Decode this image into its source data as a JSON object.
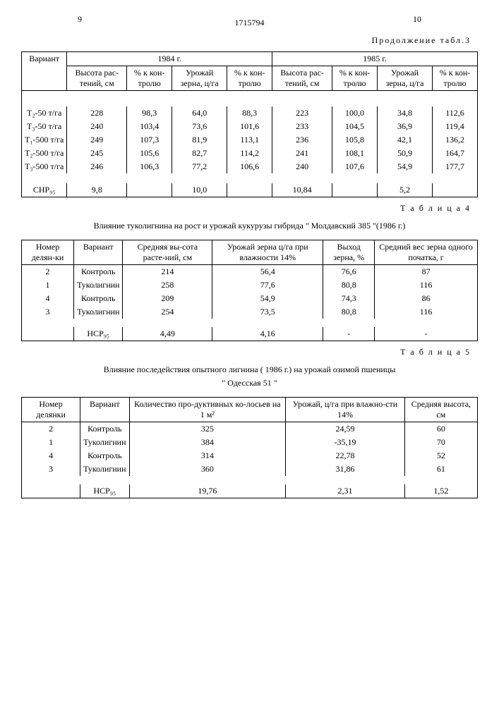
{
  "page_left": "9",
  "doc_number": "1715794",
  "page_right": "10",
  "cont_caption": "Продолжение табл.3",
  "t3": {
    "variant_hdr": "Вариант",
    "year1": "1984 г.",
    "year2": "1985 г.",
    "h_height": "Высота рас-тений, см",
    "h_pct": "% к кон-тролю",
    "h_yield": "Урожай зерна, ц/га",
    "rows": [
      {
        "v": "Т₂-50 т/га",
        "a": "228",
        "b": "98,3",
        "c": "64,0",
        "d": "88,3",
        "e": "223",
        "f": "100,0",
        "g": "34,8",
        "h": "112,6"
      },
      {
        "v": "Т₃-50 т/га",
        "a": "240",
        "b": "103,4",
        "c": "73,6",
        "d": "101,6",
        "e": "233",
        "f": "104,5",
        "g": "36,9",
        "h": "119,4"
      },
      {
        "v": "Т₁-500 т/га",
        "a": "249",
        "b": "107,3",
        "c": "81,9",
        "d": "113,1",
        "e": "236",
        "f": "105,8",
        "g": "42,1",
        "h": "136,2"
      },
      {
        "v": "Т₂-500 т/га",
        "a": "245",
        "b": "105,6",
        "c": "82,7",
        "d": "114,2",
        "e": "241",
        "f": "108,1",
        "g": "50,9",
        "h": "164,7"
      },
      {
        "v": "Т₃-500 т/га",
        "a": "246",
        "b": "106,3",
        "c": "77,2",
        "d": "106,6",
        "e": "240",
        "f": "107,6",
        "g": "54,9",
        "h": "177,7"
      }
    ],
    "snr_label": "СНР₉₅",
    "snr": {
      "a": "9,8",
      "c": "10,0",
      "e": "10,84",
      "g": "5,2"
    }
  },
  "t4_caption": "Т а б л и ц а 4",
  "t4_title": "Влияние туколигнина на рост и урожай кукурузы гибрида \" Молдавский 385 \"(1986 г.)",
  "t4": {
    "h1": "Номер делян-ки",
    "h2": "Вариант",
    "h3": "Средняя вы-сота расте-ний, см",
    "h4": "Урожай зерна ц/га при влажности 14%",
    "h5": "Выход зерна, %",
    "h6": "Средний вес зерна одного початка, г",
    "rows": [
      {
        "a": "2",
        "b": "Контроль",
        "c": "214",
        "d": "56,4",
        "e": "76,6",
        "f": "87"
      },
      {
        "a": "1",
        "b": "Туколигнин",
        "c": "258",
        "d": "77,6",
        "e": "80,8",
        "f": "116"
      },
      {
        "a": "4",
        "b": "Контроль",
        "c": "209",
        "d": "54,9",
        "e": "74,3",
        "f": "86"
      },
      {
        "a": "3",
        "b": "Туколигнин",
        "c": "254",
        "d": "73,5",
        "e": "80,8",
        "f": "116"
      }
    ],
    "hcp_label": "НСР₉₅",
    "hcp": {
      "c": "4,49",
      "d": "4,16",
      "e": "-",
      "f": "-"
    }
  },
  "t5_caption": "Т а б л и ц а 5",
  "t5_title1": "Влияние последействия опытного лигнина ( 1986 г.) на урожай озимой пшеницы",
  "t5_title2": "\" Одесская 51 \"",
  "t5": {
    "h1": "Номер делянки",
    "h2": "Вариант",
    "h3": "Количество про-дуктивных ко-лосьев на 1 м²",
    "h4": "Урожай, ц/га при влажно-сти 14%",
    "h5": "Средняя высота, см",
    "rows": [
      {
        "a": "2",
        "b": "Контроль",
        "c": "325",
        "d": "24,59",
        "e": "60"
      },
      {
        "a": "1",
        "b": "Туколигнин",
        "c": "384",
        "d": "-35,19",
        "e": "70"
      },
      {
        "a": "4",
        "b": "Контроль",
        "c": "314",
        "d": "22,78",
        "e": "52"
      },
      {
        "a": "3",
        "b": "Туколигнин",
        "c": "360",
        "d": "31,86",
        "e": "61"
      }
    ],
    "hcp_label": "НСР₉₅",
    "hcp": {
      "c": "19,76",
      "d": "2,31",
      "e": "1,52"
    }
  }
}
